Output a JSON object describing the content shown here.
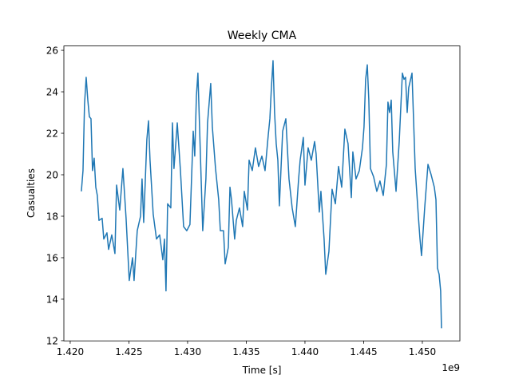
{
  "chart_data": {
    "type": "line",
    "title": "Weekly CMA",
    "xlabel": "Time [s]",
    "ylabel": "Casualties",
    "x_offset_label": "1e9",
    "color": "#1f77b4",
    "xlim": [
      1.41946,
      1.4532
    ],
    "ylim": [
      11.99,
      26.21
    ],
    "xticks": [
      {
        "value": 1.42,
        "label": "1.420"
      },
      {
        "value": 1.425,
        "label": "1.425"
      },
      {
        "value": 1.43,
        "label": "1.430"
      },
      {
        "value": 1.435,
        "label": "1.435"
      },
      {
        "value": 1.44,
        "label": "1.440"
      },
      {
        "value": 1.445,
        "label": "1.445"
      },
      {
        "value": 1.45,
        "label": "1.450"
      }
    ],
    "yticks": [
      12,
      14,
      16,
      18,
      20,
      22,
      24,
      26
    ],
    "x": [
      1.42095,
      1.42109,
      1.42122,
      1.42136,
      1.4215,
      1.42163,
      1.42177,
      1.4219,
      1.42204,
      1.42218,
      1.42231,
      1.42245,
      1.42272,
      1.42286,
      1.42313,
      1.42327,
      1.42354,
      1.42381,
      1.42395,
      1.42422,
      1.42449,
      1.42476,
      1.42503,
      1.42531,
      1.42544,
      1.42571,
      1.42599,
      1.42612,
      1.42626,
      1.42653,
      1.42667,
      1.4268,
      1.42707,
      1.42735,
      1.42762,
      1.42789,
      1.42803,
      1.42816,
      1.4283,
      1.42857,
      1.42871,
      1.42884,
      1.42912,
      1.42939,
      1.42966,
      1.42993,
      1.4302,
      1.43048,
      1.43061,
      1.43075,
      1.43088,
      1.43102,
      1.43129,
      1.43156,
      1.4317,
      1.43197,
      1.43211,
      1.43238,
      1.43265,
      1.43279,
      1.43306,
      1.4332,
      1.43347,
      1.43361,
      1.43374,
      1.43401,
      1.43415,
      1.43442,
      1.43469,
      1.43483,
      1.4351,
      1.43524,
      1.43551,
      1.43578,
      1.43605,
      1.43633,
      1.4366,
      1.43687,
      1.43701,
      1.43714,
      1.43728,
      1.43741,
      1.43755,
      1.43769,
      1.43782,
      1.4381,
      1.43837,
      1.4385,
      1.43864,
      1.43891,
      1.43918,
      1.43946,
      1.43959,
      1.43986,
      1.44,
      1.44027,
      1.44054,
      1.44082,
      1.44095,
      1.44122,
      1.44136,
      1.44163,
      1.44177,
      1.44204,
      1.44231,
      1.44259,
      1.44286,
      1.44313,
      1.4434,
      1.44367,
      1.44395,
      1.44408,
      1.44435,
      1.44463,
      1.4449,
      1.44503,
      1.44517,
      1.44531,
      1.44544,
      1.44558,
      1.44585,
      1.44612,
      1.44639,
      1.44667,
      1.44694,
      1.44707,
      1.44721,
      1.44735,
      1.44748,
      1.44776,
      1.44803,
      1.4483,
      1.44844,
      1.44857,
      1.44871,
      1.44884,
      1.44912,
      1.44925,
      1.44939,
      1.44952,
      1.44966,
      1.4498,
      1.44993,
      1.4502,
      1.45048,
      1.45075,
      1.45102,
      1.45116,
      1.45129,
      1.45143,
      1.45156,
      1.45163
    ],
    "values": [
      19.2,
      20.2,
      23.4,
      24.7,
      23.6,
      22.8,
      22.7,
      20.2,
      20.8,
      19.4,
      19.0,
      17.8,
      17.9,
      16.9,
      17.2,
      16.4,
      17.1,
      16.2,
      19.5,
      18.3,
      20.3,
      17.9,
      14.9,
      16.0,
      14.9,
      17.3,
      18.0,
      19.8,
      17.7,
      21.7,
      22.6,
      20.7,
      18.1,
      16.9,
      17.1,
      15.9,
      16.9,
      14.4,
      18.6,
      18.4,
      22.5,
      20.3,
      22.5,
      20.2,
      17.5,
      17.3,
      17.6,
      22.1,
      20.9,
      23.8,
      24.9,
      22.3,
      17.3,
      19.8,
      22.5,
      24.4,
      22.3,
      20.3,
      18.8,
      17.3,
      17.3,
      15.7,
      16.5,
      19.4,
      18.8,
      16.9,
      17.8,
      18.4,
      17.5,
      19.2,
      18.3,
      20.7,
      20.2,
      21.3,
      20.4,
      20.9,
      20.2,
      21.9,
      22.7,
      24.2,
      25.5,
      23.0,
      21.5,
      20.7,
      18.5,
      22.1,
      22.7,
      21.3,
      19.8,
      18.4,
      17.5,
      19.8,
      20.7,
      21.8,
      19.5,
      21.3,
      20.7,
      21.6,
      21.0,
      18.2,
      19.2,
      16.9,
      15.2,
      16.3,
      19.3,
      18.6,
      20.4,
      19.4,
      22.2,
      21.5,
      18.9,
      21.1,
      19.8,
      20.2,
      21.3,
      22.3,
      24.6,
      25.3,
      23.6,
      20.3,
      19.9,
      19.2,
      19.7,
      19.0,
      20.5,
      23.5,
      23.0,
      23.6,
      21.1,
      19.2,
      21.6,
      24.9,
      24.6,
      24.7,
      23.0,
      24.2,
      24.9,
      22.7,
      20.3,
      19.2,
      18.0,
      16.9,
      16.1,
      18.4,
      20.5,
      20.0,
      19.4,
      18.8,
      15.5,
      15.2,
      14.4,
      12.6
    ]
  }
}
